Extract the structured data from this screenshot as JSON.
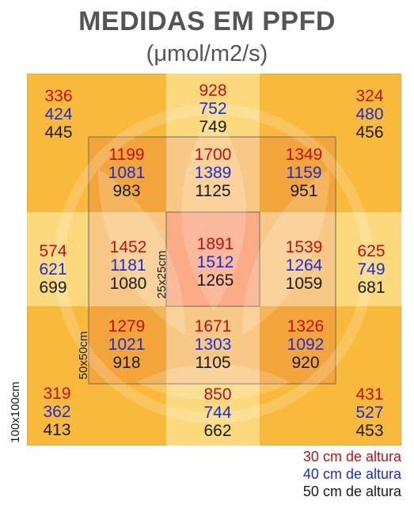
{
  "header": {
    "title": "MEDIDAS EM PPFD",
    "unit": "(μmol/m2/s)"
  },
  "colors": {
    "outer_corner": "#f9b93a",
    "outer_edge": "#fbd97c",
    "middle_corner": "#f3a53c",
    "middle_edge": "#f8c886",
    "center": "#fbab86",
    "h30": "#c41010",
    "h40": "#1a2ed8",
    "h50": "#1a1a1a"
  },
  "size_labels": {
    "outer": "100x100cm",
    "middle": "50x50cm",
    "inner": "25x25cm"
  },
  "grid": [
    {
      "id": "outer-top-left",
      "h30": "336",
      "h40": "424",
      "h50": "445"
    },
    {
      "id": "outer-top",
      "h30": "928",
      "h40": "752",
      "h50": "749"
    },
    {
      "id": "outer-top-right",
      "h30": "324",
      "h40": "480",
      "h50": "456"
    },
    {
      "id": "mid-top-left",
      "h30": "1199",
      "h40": "1081",
      "h50": "983"
    },
    {
      "id": "mid-top",
      "h30": "1700",
      "h40": "1389",
      "h50": "1125"
    },
    {
      "id": "mid-top-right",
      "h30": "1349",
      "h40": "1159",
      "h50": "951"
    },
    {
      "id": "outer-left",
      "h30": "574",
      "h40": "621",
      "h50": "699"
    },
    {
      "id": "mid-left",
      "h30": "1452",
      "h40": "1181",
      "h50": "1080"
    },
    {
      "id": "center",
      "h30": "1891",
      "h40": "1512",
      "h50": "1265"
    },
    {
      "id": "mid-right",
      "h30": "1539",
      "h40": "1264",
      "h50": "1059"
    },
    {
      "id": "outer-right",
      "h30": "625",
      "h40": "749",
      "h50": "681"
    },
    {
      "id": "mid-bottom-left",
      "h30": "1279",
      "h40": "1021",
      "h50": "918"
    },
    {
      "id": "mid-bottom",
      "h30": "1671",
      "h40": "1303",
      "h50": "1105"
    },
    {
      "id": "mid-bottom-right",
      "h30": "1326",
      "h40": "1092",
      "h50": "920"
    },
    {
      "id": "outer-bottom-left",
      "h30": "319",
      "h40": "362",
      "h50": "413"
    },
    {
      "id": "outer-bottom",
      "h30": "850",
      "h40": "744",
      "h50": "662"
    },
    {
      "id": "outer-bottom-right",
      "h30": "431",
      "h40": "527",
      "h50": "453"
    }
  ],
  "legend": {
    "h30": "30 cm de altura",
    "h40": "40 cm de altura",
    "h50": "50 cm de altura"
  }
}
